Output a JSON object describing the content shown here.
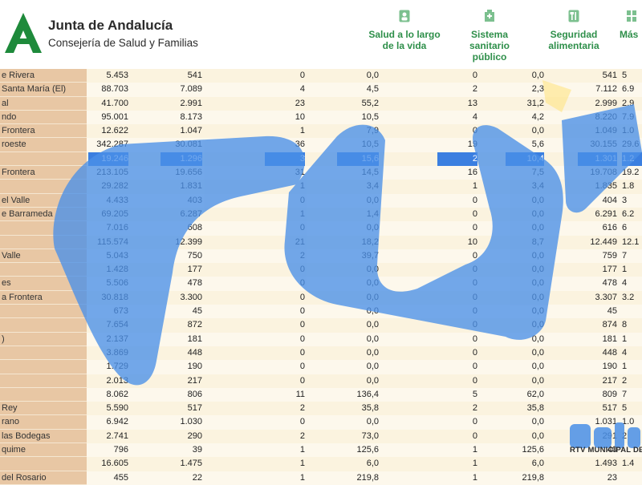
{
  "brand": {
    "title": "Junta de Andalucía",
    "subtitle": "Consejería de Salud y Familias",
    "accent": "#1e8a3b"
  },
  "nav": [
    {
      "label": "Salud a lo largo de la vida",
      "icon": "person-icon"
    },
    {
      "label": "Sistema sanitario público",
      "icon": "hospital-icon"
    },
    {
      "label": "Seguridad alimentaria",
      "icon": "cutlery-icon"
    },
    {
      "label": "Más",
      "icon": "grid-icon"
    }
  ],
  "table": {
    "selected_row_color": "#3b7fe0",
    "rows": [
      {
        "name": "e Rivera",
        "cells": [
          "5.453",
          "541",
          "0",
          "0,0",
          "0",
          "0,0",
          "541",
          "5"
        ]
      },
      {
        "name": "Santa María (El)",
        "cells": [
          "88.703",
          "7.089",
          "4",
          "4,5",
          "2",
          "2,3",
          "7.112",
          "6.9"
        ]
      },
      {
        "name": "al",
        "cells": [
          "41.700",
          "2.991",
          "23",
          "55,2",
          "13",
          "31,2",
          "2.999",
          "2.9"
        ]
      },
      {
        "name": "ndo",
        "cells": [
          "95.001",
          "8.173",
          "10",
          "10,5",
          "4",
          "4,2",
          "8.220",
          "7.9"
        ]
      },
      {
        "name": "Frontera",
        "cells": [
          "12.622",
          "1.047",
          "1",
          "7,9",
          "0",
          "0,0",
          "1.049",
          "1.0"
        ]
      },
      {
        "name": "roeste",
        "cells": [
          "342.287",
          "30.081",
          "36",
          "10,5",
          "19",
          "5,6",
          "30.155",
          "29.6"
        ]
      },
      {
        "name": "",
        "cells": [
          "19.246",
          "1.296",
          "3",
          "15,6",
          "2",
          "10,4",
          "1.301",
          "1.2"
        ],
        "selected": true
      },
      {
        "name": "Frontera",
        "cells": [
          "213.105",
          "19.656",
          "31",
          "14,5",
          "16",
          "7,5",
          "19.708",
          "19.2"
        ]
      },
      {
        "name": "",
        "cells": [
          "29.282",
          "1.831",
          "1",
          "3,4",
          "1",
          "3,4",
          "1.835",
          "1.8"
        ]
      },
      {
        "name": "el Valle",
        "cells": [
          "4.433",
          "403",
          "0",
          "0,0",
          "0",
          "0,0",
          "404",
          "3"
        ]
      },
      {
        "name": "e Barrameda",
        "cells": [
          "69.205",
          "6.287",
          "1",
          "1,4",
          "0",
          "0,0",
          "6.291",
          "6.2"
        ]
      },
      {
        "name": "",
        "cells": [
          "7.016",
          "608",
          "0",
          "0,0",
          "0",
          "0,0",
          "616",
          "6"
        ]
      },
      {
        "name": "",
        "cells": [
          "115.574",
          "12.399",
          "21",
          "18,2",
          "10",
          "8,7",
          "12.449",
          "12.1"
        ]
      },
      {
        "name": "Valle",
        "cells": [
          "5.043",
          "750",
          "2",
          "39,7",
          "0",
          "0,0",
          "759",
          "7"
        ]
      },
      {
        "name": "",
        "cells": [
          "1.428",
          "177",
          "0",
          "0,0",
          "0",
          "0,0",
          "177",
          "1"
        ]
      },
      {
        "name": "es",
        "cells": [
          "5.506",
          "478",
          "0",
          "0,0",
          "0",
          "0,0",
          "478",
          "4"
        ]
      },
      {
        "name": "a Frontera",
        "cells": [
          "30.818",
          "3.300",
          "0",
          "0,0",
          "0",
          "0,0",
          "3.307",
          "3.2"
        ]
      },
      {
        "name": "",
        "cells": [
          "673",
          "45",
          "0",
          "0,0",
          "0",
          "0,0",
          "45",
          ""
        ]
      },
      {
        "name": "",
        "cells": [
          "7.654",
          "872",
          "0",
          "0,0",
          "0",
          "0,0",
          "874",
          "8"
        ]
      },
      {
        "name": ")",
        "cells": [
          "2.137",
          "181",
          "0",
          "0,0",
          "0",
          "0,0",
          "181",
          "1"
        ]
      },
      {
        "name": "",
        "cells": [
          "3.869",
          "448",
          "0",
          "0,0",
          "0",
          "0,0",
          "448",
          "4"
        ]
      },
      {
        "name": "",
        "cells": [
          "1.729",
          "190",
          "0",
          "0,0",
          "0",
          "0,0",
          "190",
          "1"
        ]
      },
      {
        "name": "",
        "cells": [
          "2.013",
          "217",
          "0",
          "0,0",
          "0",
          "0,0",
          "217",
          "2"
        ]
      },
      {
        "name": "",
        "cells": [
          "8.062",
          "806",
          "11",
          "136,4",
          "5",
          "62,0",
          "809",
          "7"
        ]
      },
      {
        "name": "Rey",
        "cells": [
          "5.590",
          "517",
          "2",
          "35,8",
          "2",
          "35,8",
          "517",
          "5"
        ]
      },
      {
        "name": "rano",
        "cells": [
          "6.942",
          "1.030",
          "0",
          "0,0",
          "0",
          "0,0",
          "1.031",
          "1.0"
        ]
      },
      {
        "name": "las Bodegas",
        "cells": [
          "2.741",
          "290",
          "2",
          "73,0",
          "0",
          "0,0",
          "291",
          "2"
        ]
      },
      {
        "name": "quime",
        "cells": [
          "796",
          "39",
          "1",
          "125,6",
          "1",
          "125,6",
          "40",
          ""
        ]
      },
      {
        "name": "",
        "cells": [
          "16.605",
          "1.475",
          "1",
          "6,0",
          "1",
          "6,0",
          "1.493",
          "1.4"
        ]
      },
      {
        "name": "del Rosario",
        "cells": [
          "455",
          "22",
          "1",
          "219,8",
          "1",
          "219,8",
          "23",
          ""
        ]
      }
    ]
  },
  "watermark": {
    "caption": "RTV MUNICIPAL DE CH",
    "color": "#4a90e8"
  }
}
